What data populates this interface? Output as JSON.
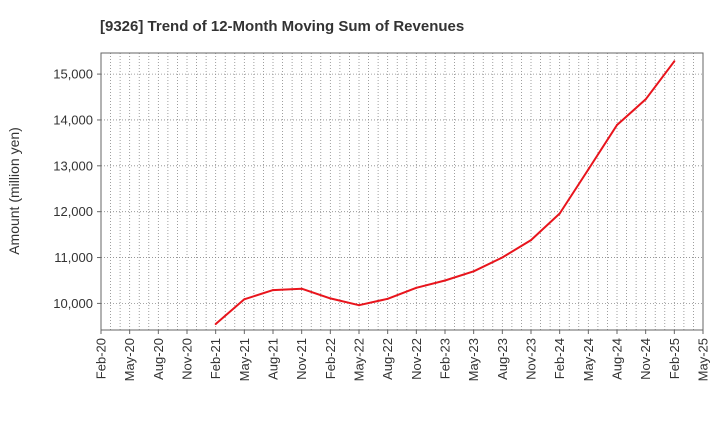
{
  "chart_data": {
    "type": "line",
    "title": "[9326]  Trend of 12-Month Moving Sum of Revenues",
    "xlabel": "",
    "ylabel": "Amount (million yen)",
    "x_tick_labels": [
      "Feb-20",
      "May-20",
      "Aug-20",
      "Nov-20",
      "Feb-21",
      "May-21",
      "Aug-21",
      "Nov-21",
      "Feb-22",
      "May-22",
      "Aug-22",
      "Nov-22",
      "Feb-23",
      "May-23",
      "Aug-23",
      "Nov-23",
      "Feb-24",
      "May-24",
      "Aug-24",
      "Nov-24",
      "Feb-25",
      "May-25"
    ],
    "y_ticks": [
      10000,
      11000,
      12000,
      13000,
      14000,
      15000
    ],
    "y_tick_labels": [
      "10,000",
      "11,000",
      "12,000",
      "13,000",
      "14,000",
      "15,000"
    ],
    "ylim": [
      9420,
      15460
    ],
    "grid": true,
    "series": [
      {
        "color": "#e8141c",
        "points": [
          {
            "x": "Feb-21",
            "y": 9550
          },
          {
            "x": "May-21",
            "y": 10090
          },
          {
            "x": "Aug-21",
            "y": 10290
          },
          {
            "x": "Nov-21",
            "y": 10320
          },
          {
            "x": "Feb-22",
            "y": 10110
          },
          {
            "x": "May-22",
            "y": 9960
          },
          {
            "x": "Aug-22",
            "y": 10100
          },
          {
            "x": "Nov-22",
            "y": 10340
          },
          {
            "x": "Feb-23",
            "y": 10500
          },
          {
            "x": "May-23",
            "y": 10700
          },
          {
            "x": "Aug-23",
            "y": 11000
          },
          {
            "x": "Nov-23",
            "y": 11380
          },
          {
            "x": "Feb-24",
            "y": 11960
          },
          {
            "x": "May-24",
            "y": 12920
          },
          {
            "x": "Aug-24",
            "y": 13890
          },
          {
            "x": "Nov-24",
            "y": 14450
          },
          {
            "x": "Feb-25",
            "y": 15280
          }
        ]
      }
    ]
  }
}
